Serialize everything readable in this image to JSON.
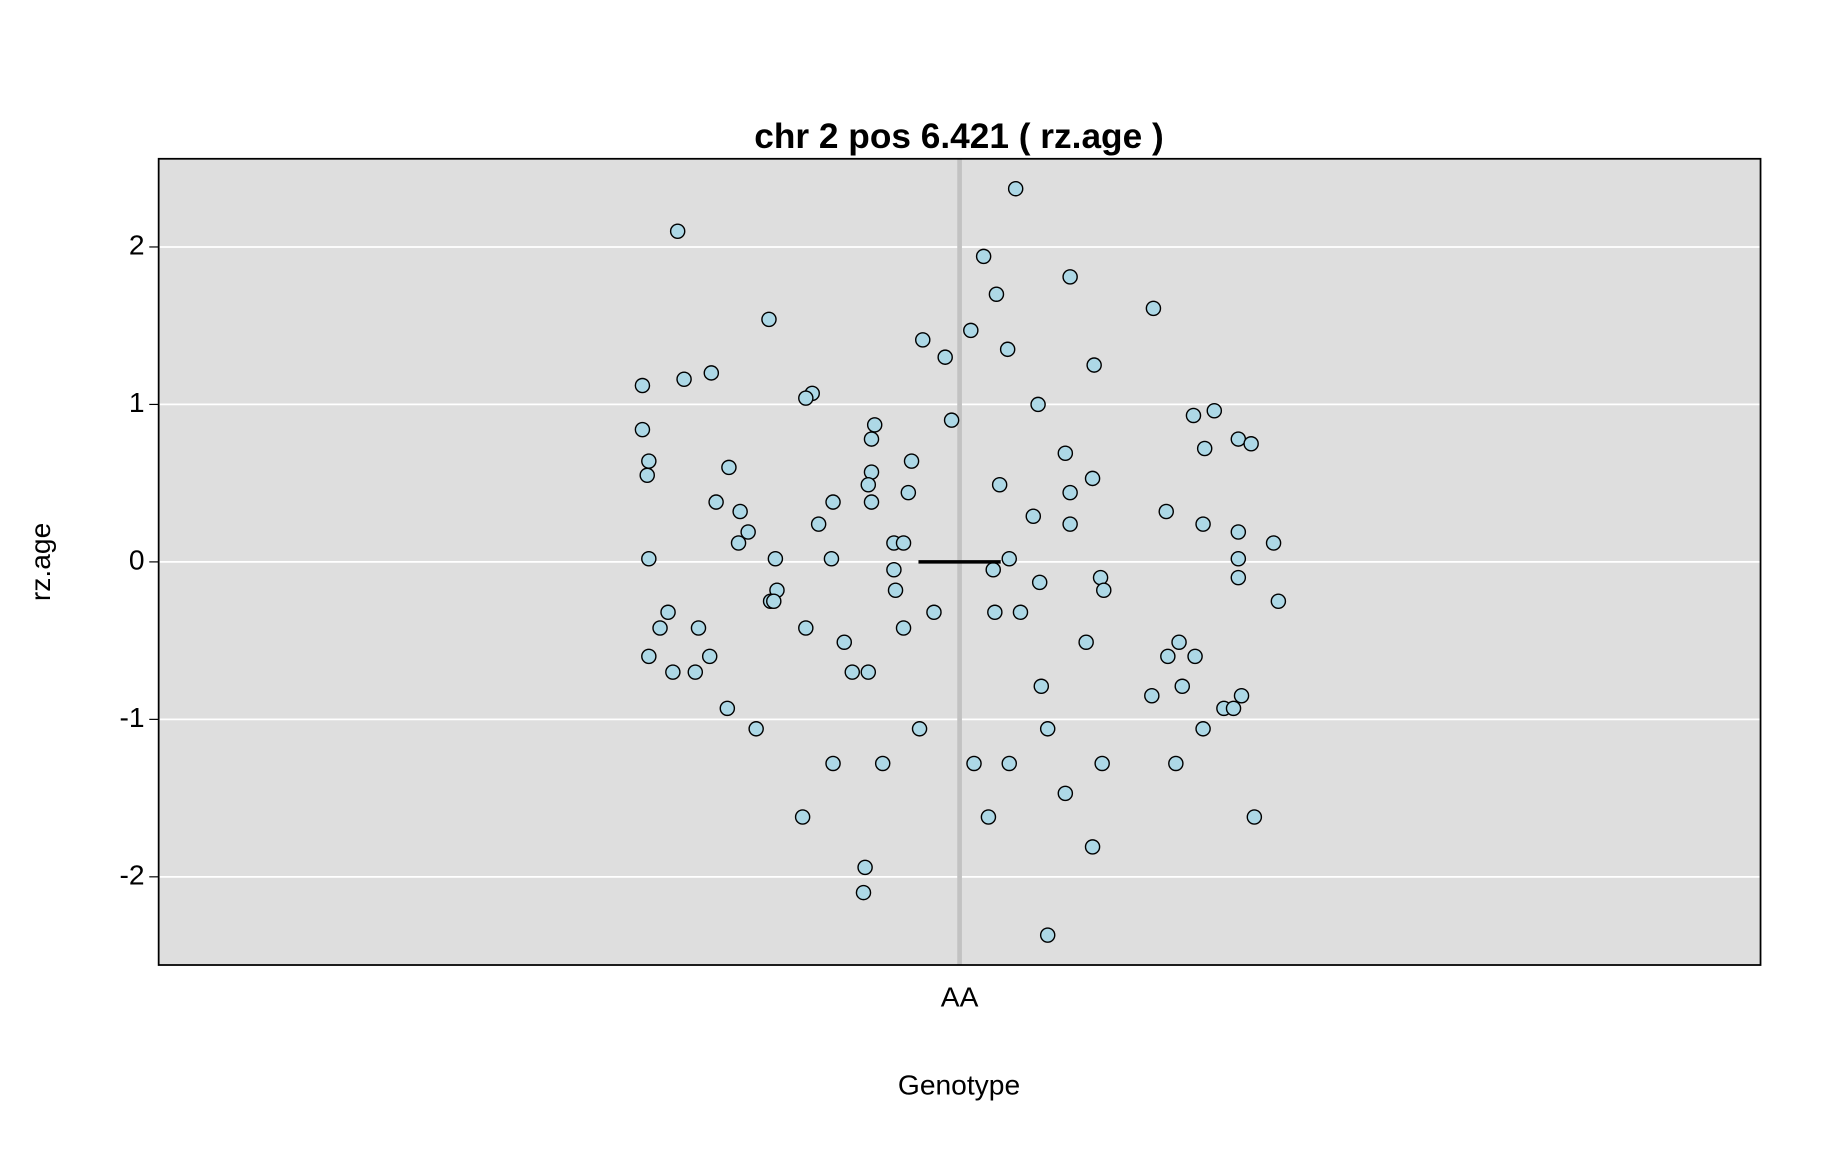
{
  "chart_data": {
    "type": "scatter",
    "title": "chr 2 pos 6.421 ( rz.age )",
    "xlabel": "Genotype",
    "ylabel": "rz.age",
    "x": [
      0.824,
      1.035,
      1.015,
      1.069,
      1.023,
      1.121,
      0.881,
      1.007,
      0.977,
      1.03,
      0.991,
      1.084,
      0.845,
      0.828,
      0.802,
      0.908,
      0.904,
      1.049,
      1.159,
      1.146,
      0.995,
      0.947,
      0.802,
      0.945,
      1.174,
      1.182,
      1.153,
      1.066,
      0.806,
      0.97,
      0.856,
      0.945,
      0.805,
      1.083,
      0.943,
      1.025,
      0.968,
      1.069,
      0.848,
      0.921,
      0.945,
      0.863,
      1.129,
      1.046,
      0.912,
      1.069,
      1.152,
      0.868,
      1.174,
      0.862,
      0.959,
      0.965,
      1.196,
      0.806,
      0.885,
      0.92,
      1.031,
      1.174,
      0.959,
      1.021,
      1.088,
      1.174,
      1.05,
      0.886,
      0.96,
      1.09,
      0.882,
      0.884,
      1.199,
      0.818,
      0.984,
      1.022,
      1.038,
      0.813,
      0.837,
      0.904,
      0.965,
      0.928,
      1.079,
      1.137,
      0.806,
      0.844,
      1.13,
      1.147,
      0.821,
      0.835,
      0.933,
      0.943,
      1.051,
      1.139,
      1.12,
      1.176,
      0.855,
      1.165,
      1.171,
      0.873,
      0.975,
      1.055,
      1.152,
      0.921,
      0.952,
      1.009,
      1.031,
      1.089,
      1.135,
      1.066,
      0.902,
      1.018,
      1.184,
      1.083,
      0.941,
      0.94,
      1.055
    ],
    "values": [
      2.1,
      2.37,
      1.94,
      1.81,
      1.7,
      1.61,
      1.54,
      1.47,
      1.41,
      1.35,
      1.3,
      1.25,
      1.2,
      1.16,
      1.12,
      1.07,
      1.04,
      1.0,
      0.96,
      0.93,
      0.9,
      0.87,
      0.84,
      0.78,
      0.78,
      0.75,
      0.72,
      0.69,
      0.64,
      0.64,
      0.6,
      0.57,
      0.55,
      0.53,
      0.49,
      0.49,
      0.44,
      0.44,
      0.38,
      0.38,
      0.38,
      0.32,
      0.32,
      0.29,
      0.24,
      0.24,
      0.24,
      0.19,
      0.19,
      0.12,
      0.12,
      0.12,
      0.12,
      0.02,
      0.02,
      0.02,
      0.02,
      0.02,
      -0.05,
      -0.05,
      -0.1,
      -0.1,
      -0.13,
      -0.18,
      -0.18,
      -0.18,
      -0.25,
      -0.25,
      -0.25,
      -0.32,
      -0.32,
      -0.32,
      -0.32,
      -0.42,
      -0.42,
      -0.42,
      -0.42,
      -0.51,
      -0.51,
      -0.51,
      -0.6,
      -0.6,
      -0.6,
      -0.6,
      -0.7,
      -0.7,
      -0.7,
      -0.7,
      -0.79,
      -0.79,
      -0.85,
      -0.85,
      -0.93,
      -0.93,
      -0.93,
      -1.06,
      -1.06,
      -1.06,
      -1.06,
      -1.28,
      -1.28,
      -1.28,
      -1.28,
      -1.28,
      -1.28,
      -1.47,
      -1.62,
      -1.62,
      -1.62,
      -1.81,
      -1.94,
      -2.1,
      -2.37
    ],
    "color": "#add8e6",
    "mean": 0,
    "xlim": [
      0.5,
      1.5
    ],
    "xticks": [
      {
        "value": 1,
        "label": "AA"
      }
    ],
    "ylim": [
      -2.56,
      2.56
    ],
    "yticks": [
      -2,
      -1,
      0,
      1,
      2
    ],
    "grid": true
  }
}
